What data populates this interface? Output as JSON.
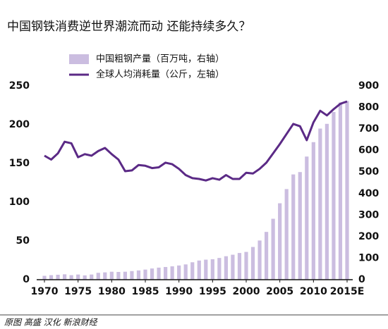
{
  "chart_data": {
    "type": "combo",
    "title": "中国钢铁消费逆世界潮流而动 还能持续多久？",
    "source": "原图 高盛 汉化 新浪财经",
    "categories": [
      "1970",
      null,
      null,
      null,
      null,
      "1975",
      null,
      null,
      null,
      null,
      "1980",
      null,
      null,
      null,
      null,
      "1985",
      null,
      null,
      null,
      null,
      "1990",
      null,
      null,
      null,
      null,
      "1995",
      null,
      null,
      null,
      null,
      "2000",
      null,
      null,
      null,
      null,
      "2005",
      null,
      null,
      null,
      null,
      "2010",
      null,
      null,
      null,
      null,
      "2015E"
    ],
    "series": [
      {
        "name": "中国粗钢产量（百万吨，右轴）",
        "type": "bar",
        "axis": "y2",
        "color": "#cbbde0",
        "values": [
          18,
          21,
          23,
          25,
          21,
          24,
          20,
          24,
          32,
          34,
          37,
          36,
          37,
          40,
          43,
          47,
          52,
          56,
          59,
          62,
          66,
          71,
          81,
          89,
          93,
          95,
          101,
          109,
          116,
          124,
          129,
          152,
          182,
          222,
          283,
          355,
          421,
          489,
          500,
          572,
          639,
          702,
          724,
          779,
          823,
          830
        ]
      },
      {
        "name": "全球人均消耗量（公斤，左轴）",
        "type": "line",
        "color": "#5b2a86",
        "values": [
          160,
          155,
          163,
          178,
          176,
          158,
          162,
          160,
          166,
          170,
          162,
          155,
          140,
          141,
          148,
          147,
          144,
          145,
          151,
          149,
          143,
          135,
          131,
          130,
          128,
          131,
          129,
          135,
          130,
          130,
          138,
          137,
          143,
          151,
          163,
          175,
          188,
          201,
          198,
          180,
          203,
          218,
          212,
          220,
          227,
          230
        ]
      }
    ],
    "ylim": [
      0,
      250
    ],
    "yticks": [
      0,
      50,
      100,
      150,
      200,
      250
    ],
    "y2lim": [
      0,
      900
    ],
    "y2ticks": [
      0,
      100,
      200,
      300,
      400,
      500,
      600,
      700,
      800,
      900
    ],
    "grid": false,
    "legend": "top"
  }
}
